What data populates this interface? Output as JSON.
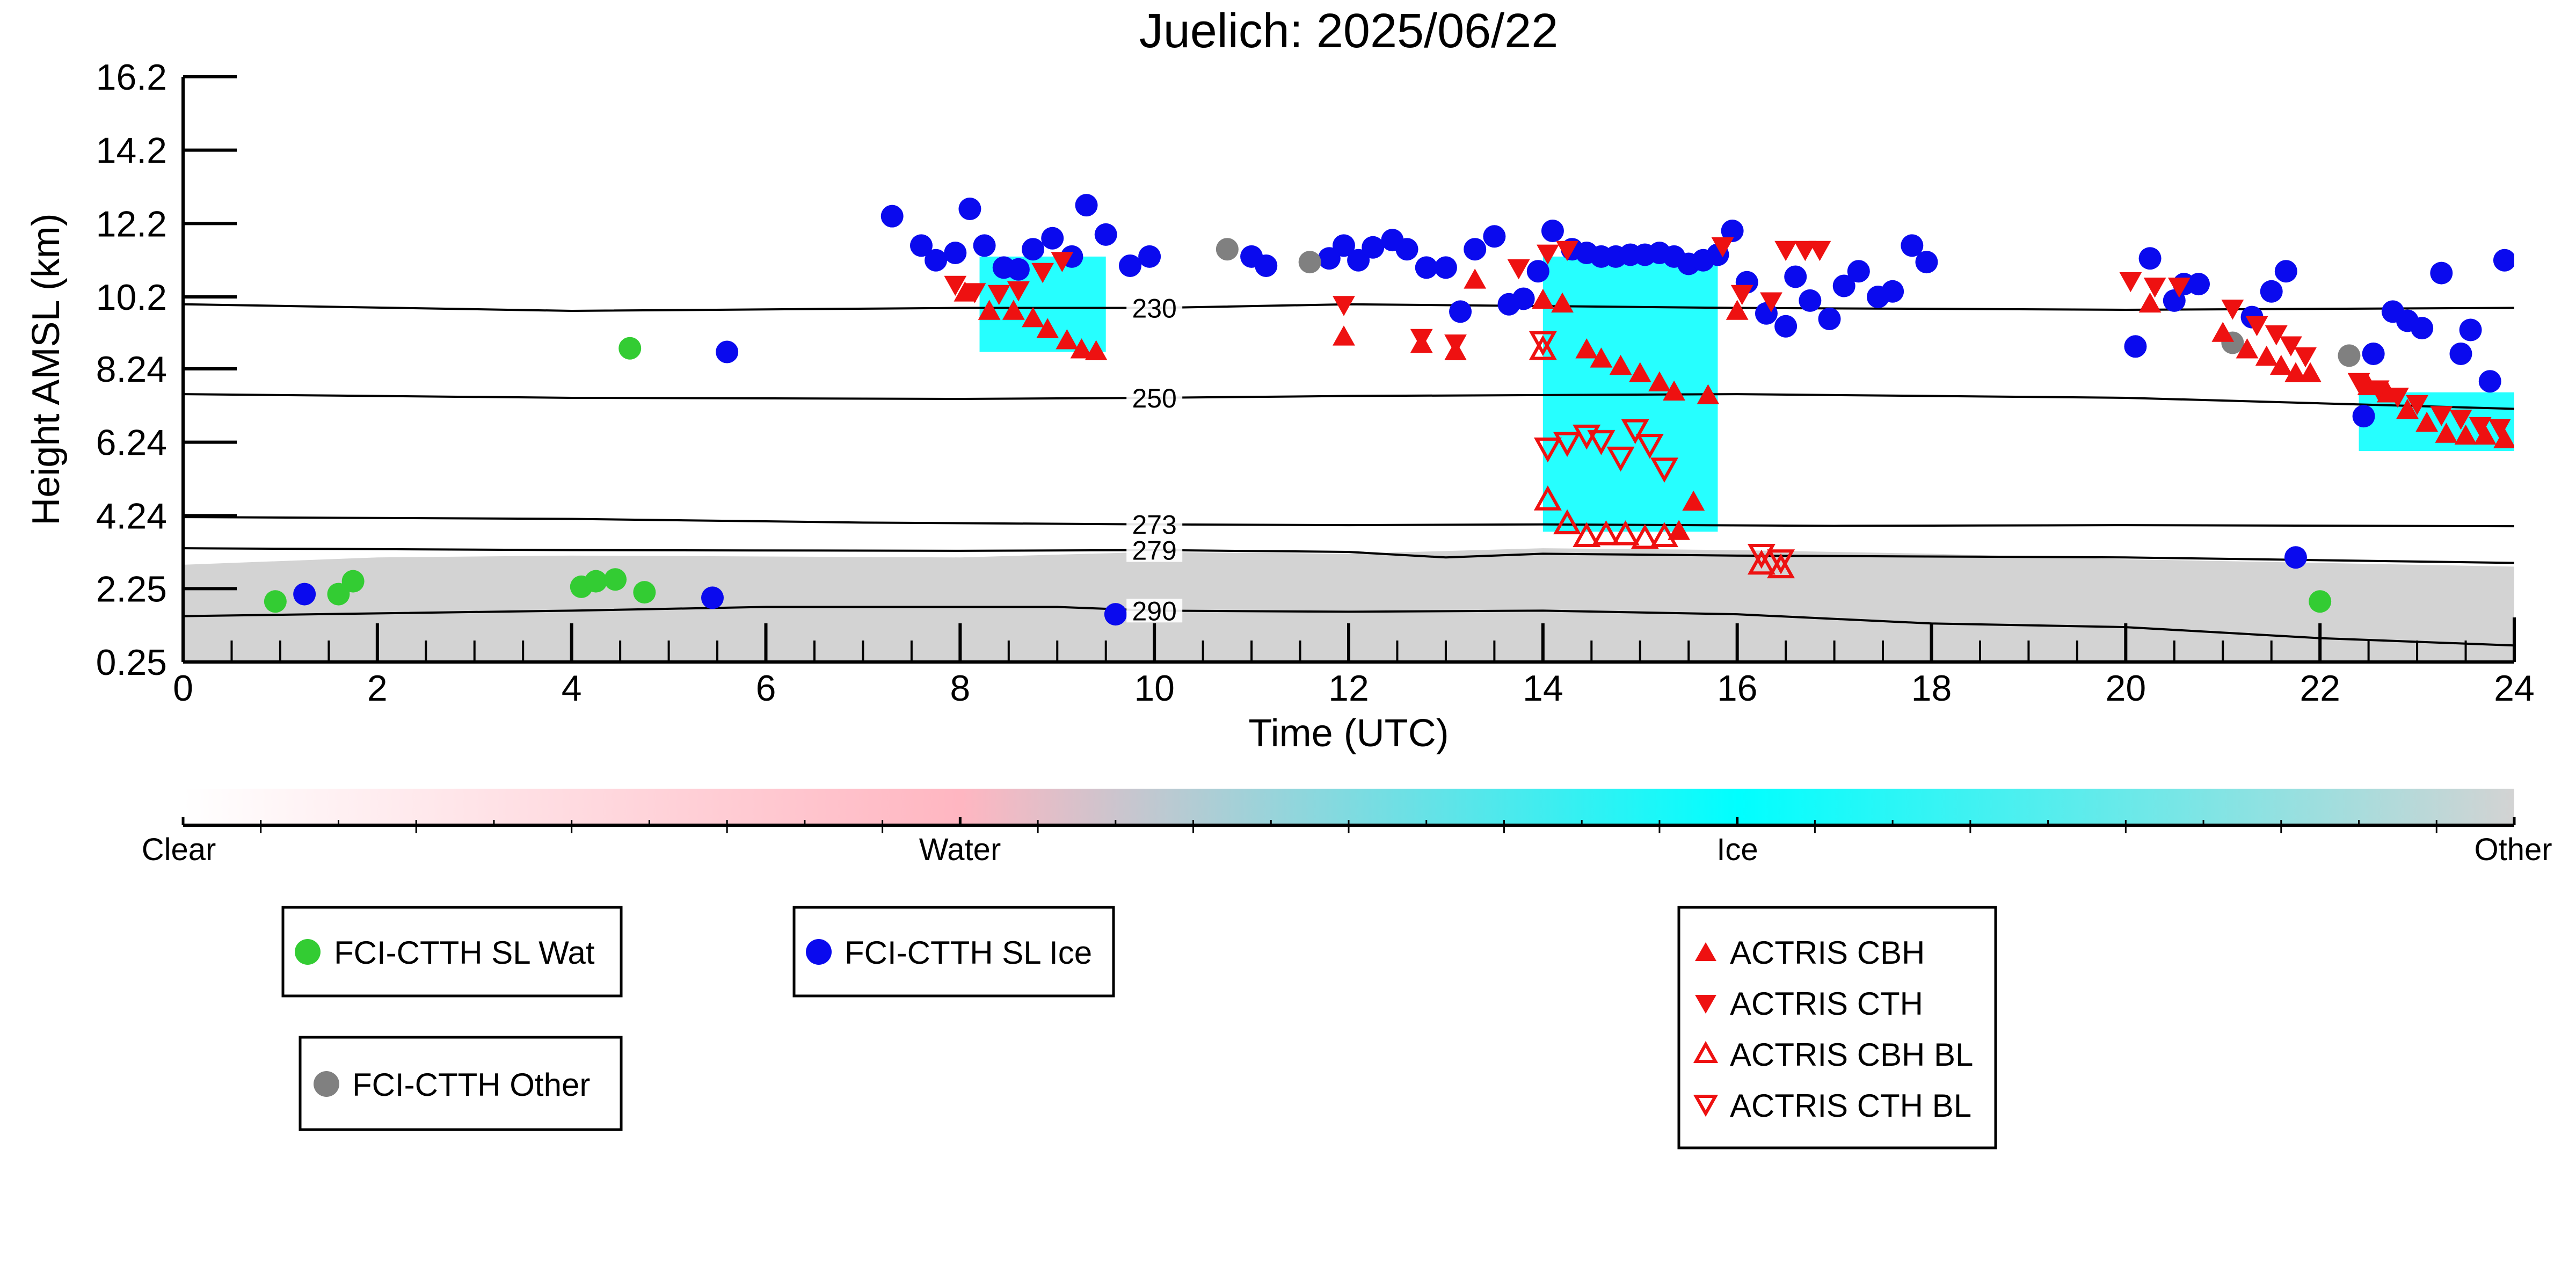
{
  "chart_data": {
    "type": "scatter",
    "title": "Juelich: 2025/06/22",
    "xlabel": "Time (UTC)",
    "ylabel": "Height AMSL (km)",
    "xlim": [
      0,
      24
    ],
    "ylim": [
      0.25,
      16.2
    ],
    "x_ticks": [
      0,
      2,
      4,
      6,
      8,
      10,
      12,
      14,
      16,
      18,
      20,
      22,
      24
    ],
    "y_ticks": [
      0.25,
      2.25,
      4.24,
      6.24,
      8.24,
      10.2,
      12.2,
      14.2,
      16.2
    ],
    "y_tick_labels": [
      "0.25",
      "2.25",
      "4.24",
      "6.24",
      "8.24",
      "10.2",
      "12.2",
      "14.2",
      "16.2"
    ],
    "grid": false,
    "colorbar": {
      "labels": [
        "Clear",
        "Water",
        "Ice",
        "Other"
      ],
      "colors": [
        "#ffffff",
        "#ffb6c1",
        "#00ffff",
        "#d3d3d3"
      ]
    },
    "isotherms": [
      {
        "label": "230",
        "label_x": 10.0,
        "points": [
          [
            0,
            10.0
          ],
          [
            4,
            9.82
          ],
          [
            8,
            9.9
          ],
          [
            10,
            9.9
          ],
          [
            12,
            10.0
          ],
          [
            16,
            9.9
          ],
          [
            20,
            9.85
          ],
          [
            24,
            9.9
          ]
        ]
      },
      {
        "label": "250",
        "label_x": 10.0,
        "points": [
          [
            0,
            7.55
          ],
          [
            4,
            7.45
          ],
          [
            8,
            7.42
          ],
          [
            10,
            7.45
          ],
          [
            12,
            7.5
          ],
          [
            16,
            7.55
          ],
          [
            20,
            7.45
          ],
          [
            22,
            7.3
          ],
          [
            24,
            7.15
          ]
        ]
      },
      {
        "label": "273",
        "label_x": 10.0,
        "points": [
          [
            0,
            4.2
          ],
          [
            4,
            4.15
          ],
          [
            7,
            4.05
          ],
          [
            10,
            4.0
          ],
          [
            12,
            3.98
          ],
          [
            14,
            4.0
          ],
          [
            17,
            3.96
          ],
          [
            20,
            3.98
          ],
          [
            24,
            3.95
          ]
        ]
      },
      {
        "label": "279",
        "label_x": 10.0,
        "points": [
          [
            0,
            3.35
          ],
          [
            4,
            3.3
          ],
          [
            8,
            3.28
          ],
          [
            10,
            3.3
          ],
          [
            12,
            3.25
          ],
          [
            13,
            3.1
          ],
          [
            14,
            3.2
          ],
          [
            16,
            3.15
          ],
          [
            20,
            3.1
          ],
          [
            24,
            2.95
          ]
        ]
      },
      {
        "label": "290",
        "label_x": 10.0,
        "points": [
          [
            0,
            1.5
          ],
          [
            4,
            1.65
          ],
          [
            6,
            1.75
          ],
          [
            9,
            1.75
          ],
          [
            10,
            1.65
          ],
          [
            12,
            1.62
          ],
          [
            14,
            1.65
          ],
          [
            16,
            1.55
          ],
          [
            18,
            1.3
          ],
          [
            20,
            1.2
          ],
          [
            22,
            0.9
          ],
          [
            24,
            0.7
          ]
        ]
      }
    ],
    "background_layers": [
      {
        "category": "Other",
        "x0": 0.0,
        "x1": 24.0,
        "top": [
          [
            0,
            2.9
          ],
          [
            2,
            3.1
          ],
          [
            4,
            3.15
          ],
          [
            8,
            3.1
          ],
          [
            10,
            3.25
          ],
          [
            12,
            3.2
          ],
          [
            14,
            3.35
          ],
          [
            16,
            3.3
          ],
          [
            18,
            3.2
          ],
          [
            20,
            3.05
          ],
          [
            22,
            2.95
          ],
          [
            24,
            2.85
          ]
        ]
      },
      {
        "category": "Ice",
        "x0": 8.2,
        "x1": 9.5,
        "y0": 8.7,
        "y1": 11.3
      },
      {
        "category": "Ice",
        "x0": 14.0,
        "x1": 15.8,
        "y0": 3.8,
        "y1": 11.3
      },
      {
        "category": "Ice",
        "x0": 22.4,
        "x1": 24.0,
        "y0": 6.0,
        "y1": 7.6
      }
    ],
    "series": [
      {
        "name": "FCI-CTTH SL Wat",
        "marker": "circle",
        "color": "#33cc33",
        "points": [
          [
            0.95,
            1.9
          ],
          [
            1.6,
            2.1
          ],
          [
            1.75,
            2.45
          ],
          [
            4.1,
            2.3
          ],
          [
            4.25,
            2.45
          ],
          [
            4.45,
            2.5
          ],
          [
            4.6,
            8.8
          ],
          [
            4.75,
            2.15
          ],
          [
            22.0,
            1.9
          ]
        ]
      },
      {
        "name": "FCI-CTTH SL Ice",
        "marker": "circle",
        "color": "#0a0aee",
        "points": [
          [
            1.25,
            2.1
          ],
          [
            5.45,
            2.0
          ],
          [
            5.6,
            8.7
          ],
          [
            7.3,
            12.4
          ],
          [
            7.6,
            11.6
          ],
          [
            7.75,
            11.2
          ],
          [
            7.95,
            11.4
          ],
          [
            8.1,
            12.6
          ],
          [
            8.25,
            11.6
          ],
          [
            8.45,
            11.0
          ],
          [
            8.6,
            10.95
          ],
          [
            8.75,
            11.5
          ],
          [
            8.95,
            11.8
          ],
          [
            9.15,
            11.3
          ],
          [
            9.3,
            12.7
          ],
          [
            9.5,
            11.9
          ],
          [
            9.6,
            1.55
          ],
          [
            9.75,
            11.05
          ],
          [
            9.95,
            11.3
          ],
          [
            11.0,
            11.3
          ],
          [
            11.15,
            11.05
          ],
          [
            11.8,
            11.25
          ],
          [
            11.95,
            11.6
          ],
          [
            12.1,
            11.2
          ],
          [
            12.25,
            11.55
          ],
          [
            12.45,
            11.75
          ],
          [
            12.6,
            11.5
          ],
          [
            12.8,
            11.0
          ],
          [
            13.0,
            11.0
          ],
          [
            13.15,
            9.8
          ],
          [
            13.3,
            11.5
          ],
          [
            13.5,
            11.85
          ],
          [
            13.65,
            10.0
          ],
          [
            13.8,
            10.15
          ],
          [
            13.95,
            10.9
          ],
          [
            14.1,
            12.0
          ],
          [
            14.3,
            11.5
          ],
          [
            14.45,
            11.4
          ],
          [
            14.6,
            11.3
          ],
          [
            14.75,
            11.3
          ],
          [
            14.9,
            11.35
          ],
          [
            15.05,
            11.35
          ],
          [
            15.2,
            11.4
          ],
          [
            15.35,
            11.3
          ],
          [
            15.5,
            11.1
          ],
          [
            15.65,
            11.2
          ],
          [
            15.8,
            11.35
          ],
          [
            15.95,
            12.0
          ],
          [
            16.1,
            10.6
          ],
          [
            16.3,
            9.75
          ],
          [
            16.5,
            9.4
          ],
          [
            16.6,
            10.75
          ],
          [
            16.75,
            10.1
          ],
          [
            16.95,
            9.6
          ],
          [
            17.1,
            10.5
          ],
          [
            17.25,
            10.9
          ],
          [
            17.45,
            10.2
          ],
          [
            17.6,
            10.35
          ],
          [
            17.8,
            11.6
          ],
          [
            17.95,
            11.15
          ],
          [
            20.1,
            8.85
          ],
          [
            20.25,
            11.25
          ],
          [
            20.5,
            10.1
          ],
          [
            20.6,
            10.55
          ],
          [
            20.75,
            10.55
          ],
          [
            21.3,
            9.65
          ],
          [
            21.5,
            10.35
          ],
          [
            21.65,
            10.9
          ],
          [
            21.75,
            3.1
          ],
          [
            22.55,
            8.65
          ],
          [
            22.45,
            6.95
          ],
          [
            22.75,
            9.8
          ],
          [
            22.9,
            9.55
          ],
          [
            23.05,
            9.35
          ],
          [
            23.25,
            10.85
          ],
          [
            23.45,
            8.65
          ],
          [
            23.55,
            9.3
          ],
          [
            23.75,
            7.9
          ],
          [
            23.9,
            11.2
          ]
        ]
      },
      {
        "name": "FCI-CTTH Other",
        "marker": "circle",
        "color": "#808080",
        "points": [
          [
            10.75,
            11.5
          ],
          [
            11.6,
            11.15
          ],
          [
            21.1,
            8.95
          ],
          [
            22.3,
            8.6
          ]
        ]
      },
      {
        "name": "ACTRIS CBH",
        "marker": "triangle-up",
        "color": "#ee1111",
        "filled": true,
        "points": [
          [
            8.05,
            10.3
          ],
          [
            8.3,
            9.8
          ],
          [
            8.55,
            9.8
          ],
          [
            8.75,
            9.6
          ],
          [
            8.9,
            9.3
          ],
          [
            9.1,
            9.0
          ],
          [
            9.25,
            8.75
          ],
          [
            9.4,
            8.7
          ],
          [
            11.95,
            9.1
          ],
          [
            12.75,
            8.9
          ],
          [
            13.1,
            8.7
          ],
          [
            13.3,
            10.65
          ],
          [
            14.0,
            10.1
          ],
          [
            14.2,
            10.0
          ],
          [
            14.45,
            8.75
          ],
          [
            14.6,
            8.5
          ],
          [
            14.8,
            8.3
          ],
          [
            15.0,
            8.1
          ],
          [
            15.2,
            7.85
          ],
          [
            15.35,
            7.6
          ],
          [
            15.7,
            7.5
          ],
          [
            15.55,
            4.6
          ],
          [
            15.4,
            3.8
          ],
          [
            16.0,
            9.8
          ],
          [
            20.25,
            10.0
          ],
          [
            21.0,
            9.2
          ],
          [
            21.25,
            8.75
          ],
          [
            21.45,
            8.55
          ],
          [
            21.6,
            8.3
          ],
          [
            21.75,
            8.1
          ],
          [
            21.9,
            8.1
          ],
          [
            22.5,
            7.75
          ],
          [
            22.7,
            7.55
          ],
          [
            22.9,
            7.1
          ],
          [
            23.1,
            6.75
          ],
          [
            23.3,
            6.45
          ],
          [
            23.5,
            6.4
          ],
          [
            23.7,
            6.4
          ],
          [
            23.9,
            6.3
          ]
        ]
      },
      {
        "name": "ACTRIS CTH",
        "marker": "triangle-down",
        "color": "#ee1111",
        "filled": true,
        "points": [
          [
            7.95,
            10.55
          ],
          [
            8.15,
            10.35
          ],
          [
            8.4,
            10.3
          ],
          [
            8.6,
            10.4
          ],
          [
            8.85,
            10.9
          ],
          [
            9.05,
            11.2
          ],
          [
            11.95,
            10.0
          ],
          [
            12.75,
            9.1
          ],
          [
            13.1,
            8.95
          ],
          [
            13.75,
            11.0
          ],
          [
            14.05,
            11.4
          ],
          [
            14.25,
            11.5
          ],
          [
            15.85,
            11.6
          ],
          [
            16.05,
            10.3
          ],
          [
            16.35,
            10.1
          ],
          [
            16.5,
            11.5
          ],
          [
            16.7,
            11.5
          ],
          [
            16.85,
            11.5
          ],
          [
            20.05,
            10.65
          ],
          [
            20.3,
            10.5
          ],
          [
            20.55,
            10.5
          ],
          [
            21.1,
            9.9
          ],
          [
            21.35,
            9.45
          ],
          [
            21.55,
            9.2
          ],
          [
            21.7,
            8.9
          ],
          [
            21.85,
            8.6
          ],
          [
            22.4,
            7.9
          ],
          [
            22.6,
            7.7
          ],
          [
            22.8,
            7.5
          ],
          [
            23.0,
            7.3
          ],
          [
            23.25,
            7.0
          ],
          [
            23.45,
            6.9
          ],
          [
            23.65,
            6.7
          ],
          [
            23.85,
            6.65
          ]
        ]
      },
      {
        "name": "ACTRIS CBH BL",
        "marker": "triangle-up",
        "color": "#ee1111",
        "filled": false,
        "points": [
          [
            14.0,
            8.75
          ],
          [
            14.05,
            4.65
          ],
          [
            14.25,
            4.0
          ],
          [
            14.45,
            3.65
          ],
          [
            14.65,
            3.7
          ],
          [
            14.85,
            3.7
          ],
          [
            15.05,
            3.6
          ],
          [
            15.25,
            3.65
          ],
          [
            16.25,
            2.9
          ],
          [
            16.45,
            2.8
          ]
        ]
      },
      {
        "name": "ACTRIS CTH BL",
        "marker": "triangle-down",
        "color": "#ee1111",
        "filled": false,
        "points": [
          [
            14.0,
            9.0
          ],
          [
            14.05,
            6.1
          ],
          [
            14.25,
            6.25
          ],
          [
            14.45,
            6.45
          ],
          [
            14.6,
            6.3
          ],
          [
            14.8,
            5.85
          ],
          [
            14.95,
            6.6
          ],
          [
            15.1,
            6.2
          ],
          [
            15.25,
            5.55
          ],
          [
            16.25,
            3.2
          ],
          [
            16.45,
            3.05
          ]
        ]
      }
    ]
  }
}
